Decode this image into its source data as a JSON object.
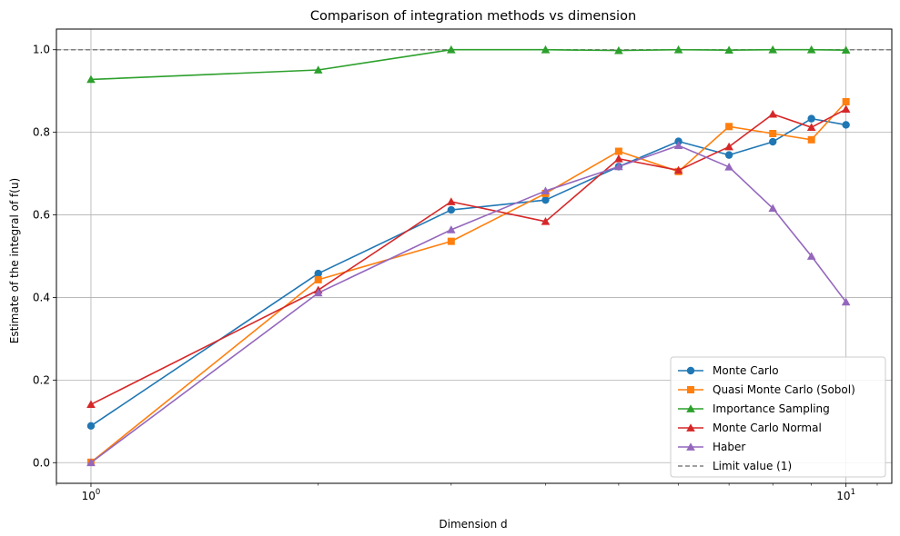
{
  "chart_data": {
    "type": "line",
    "title": "Comparison of integration methods vs dimension",
    "xlabel": "Dimension d",
    "ylabel": "Estimate of the integral of f(u)",
    "xscale": "log",
    "xlim": [
      0.9,
      11.5
    ],
    "ylim": [
      -0.05,
      1.05
    ],
    "x": [
      1,
      2,
      3,
      4,
      5,
      6,
      7,
      8,
      9,
      10
    ],
    "x_major_ticks": [
      {
        "value": 1,
        "base": "10",
        "exp": "0"
      },
      {
        "value": 10,
        "base": "10",
        "exp": "1"
      }
    ],
    "y_ticks": [
      {
        "value": 0.0,
        "label": "0.0"
      },
      {
        "value": 0.2,
        "label": "0.2"
      },
      {
        "value": 0.4,
        "label": "0.4"
      },
      {
        "value": 0.6,
        "label": "0.6"
      },
      {
        "value": 0.8,
        "label": "0.8"
      },
      {
        "value": 1.0,
        "label": "1.0"
      }
    ],
    "grid": true,
    "legend_position": "lower-right",
    "series": [
      {
        "name": "Monte Carlo",
        "color": "#1f77b4",
        "marker": "circle",
        "values": [
          0.089,
          0.458,
          0.612,
          0.636,
          0.717,
          0.778,
          0.745,
          0.777,
          0.833,
          0.818
        ]
      },
      {
        "name": "Quasi Monte Carlo (Sobol)",
        "color": "#ff7f0e",
        "marker": "square",
        "values": [
          0.001,
          0.443,
          0.536,
          0.652,
          0.754,
          0.705,
          0.814,
          0.797,
          0.782,
          0.874
        ]
      },
      {
        "name": "Importance Sampling",
        "color": "#2ca02c",
        "marker": "triangle",
        "values": [
          0.928,
          0.951,
          1.0,
          1.0,
          0.998,
          1.0,
          0.999,
          1.0,
          1.0,
          0.999
        ]
      },
      {
        "name": "Monte Carlo Normal",
        "color": "#d62728",
        "marker": "triangle",
        "values": [
          0.141,
          0.418,
          0.632,
          0.584,
          0.736,
          0.708,
          0.765,
          0.844,
          0.812,
          0.856
        ]
      },
      {
        "name": "Haber",
        "color": "#9467bd",
        "marker": "triangle",
        "values": [
          0.0,
          0.411,
          0.564,
          0.658,
          0.717,
          0.768,
          0.716,
          0.616,
          0.5,
          0.389
        ]
      }
    ],
    "reference_line": {
      "name": "Limit value (1)",
      "value": 1.0,
      "color": "#808080",
      "style": "dashed"
    }
  }
}
